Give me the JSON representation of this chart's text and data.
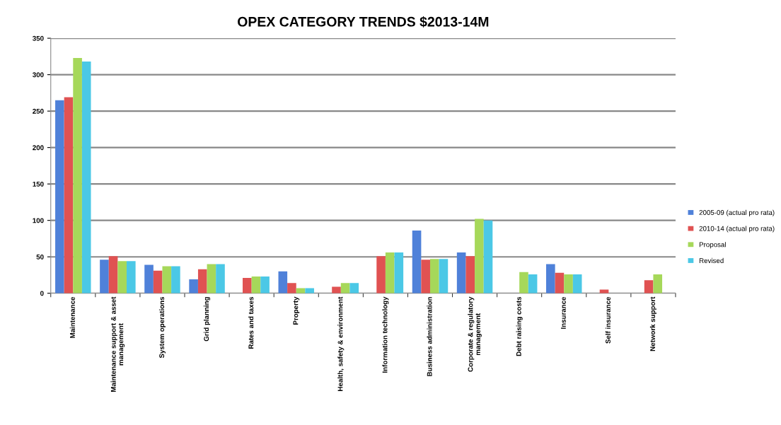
{
  "chart_data": {
    "type": "bar",
    "title": "OPEX CATEGORY TRENDS $2013-14M",
    "categories": [
      "Maintenance",
      "Maintenance support & asset\nmanagement",
      "System operations",
      "Grid planning",
      "Rates and taxes",
      "Property",
      "Health, safety & environment",
      "Information technology",
      "Business administration",
      "Corporate & regulatory\nmanagement",
      "Debt raising costs",
      "Insurance",
      "Self insurance",
      "Network support"
    ],
    "series": [
      {
        "name": "2005-09 (actual pro rata)",
        "color": "#4f81d9",
        "values": [
          265,
          46,
          39,
          19,
          null,
          30,
          null,
          null,
          86,
          56,
          null,
          40,
          null,
          null
        ]
      },
      {
        "name": "2010-14 (actual pro rata)",
        "color": "#e05252",
        "values": [
          269,
          51,
          31,
          33,
          21,
          14,
          9,
          51,
          46,
          51,
          null,
          28,
          5,
          18
        ]
      },
      {
        "name": "Proposal",
        "color": "#a6d85a",
        "values": [
          323,
          44,
          37,
          40,
          23,
          7,
          14,
          56,
          47,
          102,
          29,
          26,
          null,
          26
        ]
      },
      {
        "name": "Revised",
        "color": "#4bc8e6",
        "values": [
          318,
          44,
          37,
          40,
          23,
          7,
          14,
          56,
          47,
          100,
          26,
          26,
          null,
          null
        ]
      }
    ],
    "ylim": [
      0,
      350
    ],
    "yticks": [
      0,
      50,
      100,
      150,
      200,
      250,
      300,
      350
    ],
    "grid": "y",
    "legend": "right"
  }
}
